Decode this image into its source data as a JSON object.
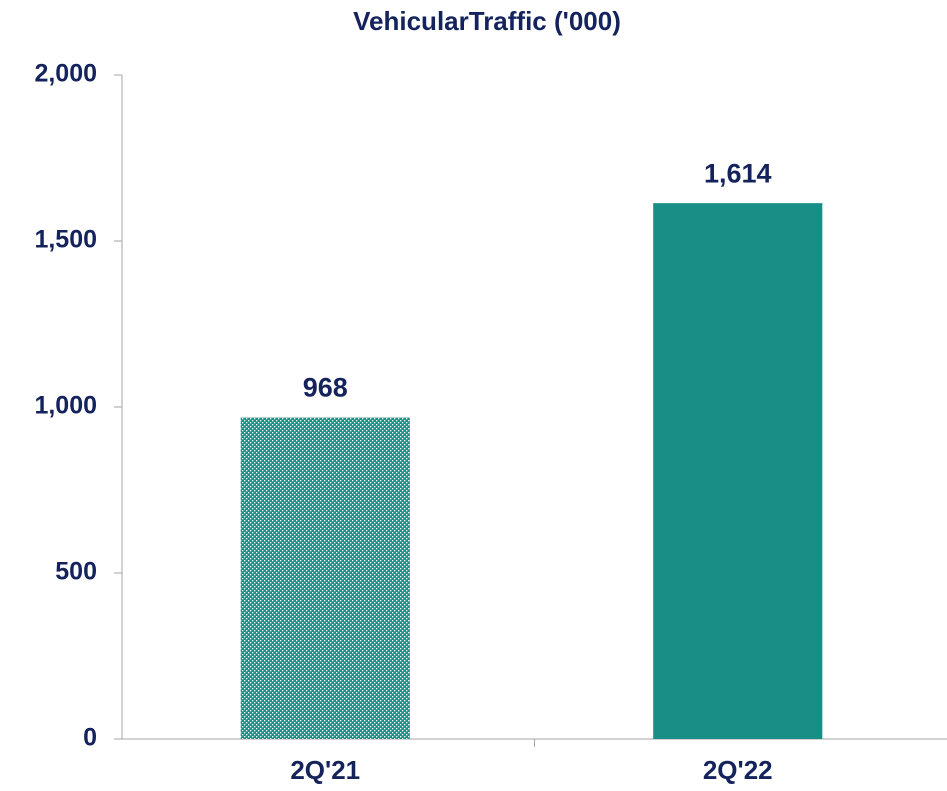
{
  "chart_data": {
    "type": "bar",
    "title": "VehicularTraffic ('000)",
    "categories": [
      "2Q'21",
      "2Q'22"
    ],
    "values": [
      968,
      1614
    ],
    "value_labels": [
      "968",
      "1,614"
    ],
    "colors": [
      "#1a9088",
      "#178f87"
    ],
    "patterns": [
      "dotted",
      "solid"
    ],
    "ylim": [
      0,
      2000
    ],
    "yticks": [
      0,
      500,
      {
        "value": 1000,
        "label": "1,000"
      },
      {
        "value": 1500,
        "label": "1,500"
      },
      {
        "value": 2000,
        "label": "2,000"
      }
    ],
    "grid": false
  }
}
